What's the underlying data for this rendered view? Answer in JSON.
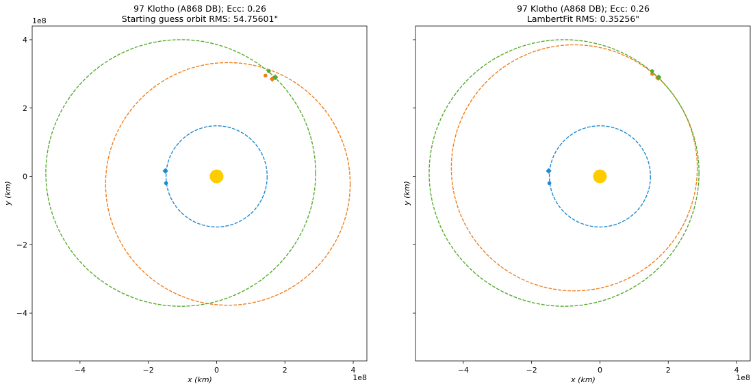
{
  "chart_data": [
    {
      "type": "line",
      "title_line1": "97 Klotho (A868 DB); Ecc: 0.26",
      "title_line2": "Starting guess orbit RMS: 54.75601\"",
      "xlabel": "x (km)",
      "ylabel": "y (km)",
      "x_offset_label": "1e8",
      "y_offset_label": "1e8",
      "xlim": [
        -5.4,
        4.4
      ],
      "ylim": [
        -5.4,
        4.4
      ],
      "xticks": [
        -4,
        -2,
        0,
        2,
        4
      ],
      "yticks": [
        -4,
        -2,
        0,
        2,
        4
      ],
      "xtick_labels": [
        "−4",
        "−2",
        "0",
        "2",
        "4"
      ],
      "ytick_labels": [
        "−4",
        "−2",
        "0",
        "2",
        "4"
      ],
      "show_y_tick_labels": true,
      "grid": false,
      "sun": {
        "x": 0,
        "y": 0,
        "color": "#ffcc00"
      },
      "orbits": [
        {
          "color": "#1f8ad0",
          "cx": 0,
          "cy": 0,
          "rx": 1.48,
          "ry": 1.48
        },
        {
          "color": "#f07d1a",
          "cx": 0.33,
          "cy": -0.22,
          "rx": 3.58,
          "ry": 3.55
        },
        {
          "color": "#55aa2c",
          "cx": -1.05,
          "cy": 0.1,
          "rx": 3.95,
          "ry": 3.9
        }
      ],
      "markers": [
        {
          "color": "#1f8ad0",
          "shape": "diamond",
          "x": -1.5,
          "y": 0.16
        },
        {
          "color": "#1f8ad0",
          "shape": "circle",
          "x": -1.48,
          "y": -0.2
        },
        {
          "color": "#f07d1a",
          "shape": "circle",
          "x": 1.43,
          "y": 2.95
        },
        {
          "color": "#f07d1a",
          "shape": "diamond",
          "x": 1.63,
          "y": 2.85
        },
        {
          "color": "#55aa2c",
          "shape": "circle",
          "x": 1.53,
          "y": 3.08
        },
        {
          "color": "#55aa2c",
          "shape": "diamond",
          "x": 1.72,
          "y": 2.9
        }
      ]
    },
    {
      "type": "line",
      "title_line1": "97 Klotho (A868 DB); Ecc: 0.26",
      "title_line2": "LambertFit RMS: 0.35256\"",
      "xlabel": "x (km)",
      "ylabel": "y (km)",
      "x_offset_label": "1e8",
      "y_offset_label": "",
      "xlim": [
        -5.4,
        4.4
      ],
      "ylim": [
        -5.4,
        4.4
      ],
      "xticks": [
        -4,
        -2,
        0,
        2,
        4
      ],
      "yticks": [
        -4,
        -2,
        0,
        2,
        4
      ],
      "xtick_labels": [
        "−4",
        "−2",
        "0",
        "2",
        "4"
      ],
      "ytick_labels": [],
      "show_y_tick_labels": false,
      "grid": false,
      "sun": {
        "x": 0,
        "y": 0,
        "color": "#ffcc00"
      },
      "orbits": [
        {
          "color": "#1f8ad0",
          "cx": 0,
          "cy": 0,
          "rx": 1.48,
          "ry": 1.48
        },
        {
          "color": "#f07d1a",
          "cx": -0.75,
          "cy": 0.25,
          "rx": 3.6,
          "ry": 3.6
        },
        {
          "color": "#55aa2c",
          "cx": -1.05,
          "cy": 0.1,
          "rx": 3.95,
          "ry": 3.9
        }
      ],
      "markers": [
        {
          "color": "#1f8ad0",
          "shape": "diamond",
          "x": -1.5,
          "y": 0.16
        },
        {
          "color": "#1f8ad0",
          "shape": "circle",
          "x": -1.48,
          "y": -0.2
        },
        {
          "color": "#f07d1a",
          "shape": "circle",
          "x": 1.53,
          "y": 3.0
        },
        {
          "color": "#f07d1a",
          "shape": "diamond",
          "x": 1.7,
          "y": 2.88
        },
        {
          "color": "#55aa2c",
          "shape": "circle",
          "x": 1.53,
          "y": 3.08
        },
        {
          "color": "#55aa2c",
          "shape": "diamond",
          "x": 1.72,
          "y": 2.9
        }
      ]
    }
  ]
}
